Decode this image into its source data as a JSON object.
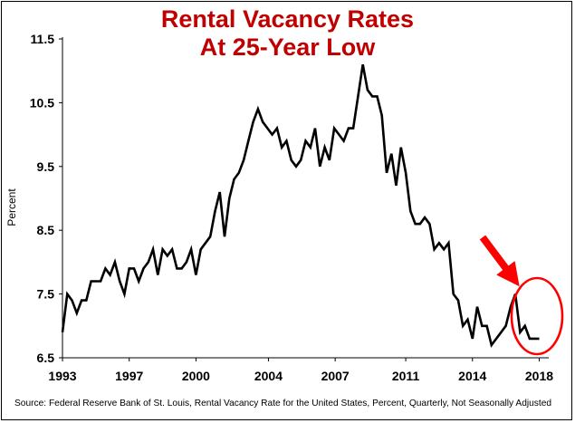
{
  "title_line1": "Rental Vacancy Rates",
  "title_line2": "At 25-Year Low",
  "source": "Source: Federal Reserve Bank of St. Louis, Rental Vacancy Rate for the United States, Percent, Quarterly, Not Seasonally Adjusted",
  "colors": {
    "line": "#000000",
    "title": "#c00000",
    "annotation": "#ff0000"
  },
  "chart_data": {
    "type": "line",
    "title": "Rental Vacancy Rates At 25-Year Low",
    "xlabel": "",
    "ylabel": "Percent",
    "xlim": [
      1993,
      2018.5
    ],
    "ylim": [
      6.5,
      11.5
    ],
    "x_ticks": [
      "1993",
      "1997",
      "2000",
      "2004",
      "2007",
      "2011",
      "2014",
      "2018"
    ],
    "x_tick_values": [
      1993,
      1996.5,
      2000,
      2003.8,
      2007.3,
      2011,
      2014.5,
      2018
    ],
    "y_ticks": [
      "6.5",
      "7.5",
      "8.5",
      "9.5",
      "10.5",
      "11.5"
    ],
    "y_tick_values": [
      6.5,
      7.5,
      8.5,
      9.5,
      10.5,
      11.5
    ],
    "grid": false,
    "legend": "none",
    "annotation": {
      "type": "arrow-and-circle",
      "target": "2017 peak and 2018 low",
      "color": "#ff0000"
    },
    "series": [
      {
        "x": [
          1993.0,
          1993.25,
          1993.5,
          1993.75,
          1994.0,
          1994.25,
          1994.5,
          1994.75,
          1995.0,
          1995.25,
          1995.5,
          1995.75,
          1996.0,
          1996.25,
          1996.5,
          1996.75,
          1997.0,
          1997.25,
          1997.5,
          1997.75,
          1998.0,
          1998.25,
          1998.5,
          1998.75,
          1999.0,
          1999.25,
          1999.5,
          1999.75,
          2000.0,
          2000.25,
          2000.5,
          2000.75,
          2001.0,
          2001.25,
          2001.5,
          2001.75,
          2002.0,
          2002.25,
          2002.5,
          2002.75,
          2003.0,
          2003.25,
          2003.5,
          2003.75,
          2004.0,
          2004.25,
          2004.5,
          2004.75,
          2005.0,
          2005.25,
          2005.5,
          2005.75,
          2006.0,
          2006.25,
          2006.5,
          2006.75,
          2007.0,
          2007.25,
          2007.5,
          2007.75,
          2008.0,
          2008.25,
          2008.5,
          2008.75,
          2009.0,
          2009.25,
          2009.5,
          2009.75,
          2010.0,
          2010.25,
          2010.5,
          2010.75,
          2011.0,
          2011.25,
          2011.5,
          2011.75,
          2012.0,
          2012.25,
          2012.5,
          2012.75,
          2013.0,
          2013.25,
          2013.5,
          2013.75,
          2014.0,
          2014.25,
          2014.5,
          2014.75,
          2015.0,
          2015.25,
          2015.5,
          2015.75,
          2016.0,
          2016.25,
          2016.5,
          2016.75,
          2017.0,
          2017.25,
          2017.5,
          2017.75,
          2018.0
        ],
        "values": [
          6.9,
          7.5,
          7.4,
          7.2,
          7.4,
          7.4,
          7.7,
          7.7,
          7.7,
          7.9,
          7.8,
          8.0,
          7.7,
          7.5,
          7.9,
          7.9,
          7.7,
          7.9,
          8.0,
          8.2,
          7.8,
          8.2,
          8.1,
          8.2,
          7.9,
          7.9,
          8.0,
          8.2,
          7.8,
          8.2,
          8.3,
          8.4,
          8.8,
          9.1,
          8.4,
          9.0,
          9.3,
          9.4,
          9.6,
          9.9,
          10.2,
          10.4,
          10.2,
          10.1,
          10.0,
          10.1,
          9.8,
          9.9,
          9.6,
          9.5,
          9.6,
          9.9,
          9.8,
          10.1,
          9.5,
          9.8,
          9.6,
          10.1,
          10.0,
          9.9,
          10.1,
          10.1,
          10.6,
          11.1,
          10.7,
          10.6,
          10.6,
          10.3,
          9.4,
          9.7,
          9.2,
          9.8,
          9.4,
          8.8,
          8.6,
          8.6,
          8.7,
          8.6,
          8.2,
          8.3,
          8.2,
          8.3,
          7.5,
          7.4,
          7.0,
          7.1,
          6.8,
          7.3,
          7.0,
          7.0,
          6.7,
          6.8,
          6.9,
          7.0,
          7.3,
          7.5,
          6.9,
          7.0,
          6.8,
          6.8,
          6.8
        ]
      }
    ]
  }
}
